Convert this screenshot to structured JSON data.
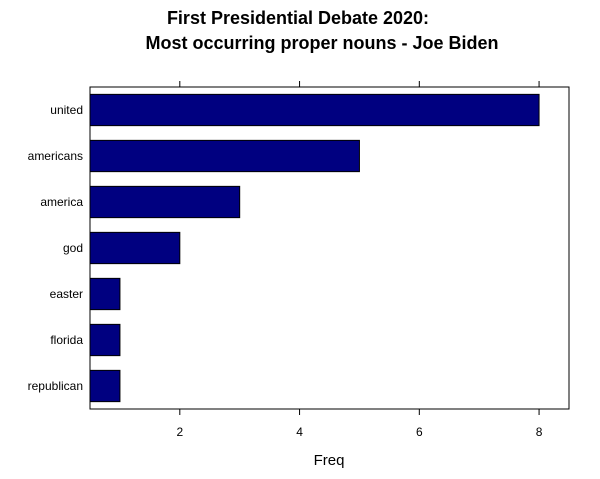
{
  "chart_data": {
    "type": "bar",
    "orientation": "horizontal",
    "title_lines": [
      "First Presidential Debate 2020:",
      "Most occurring proper nouns - Joe Biden"
    ],
    "xlabel": "Freq",
    "ylabel": "",
    "categories": [
      "united",
      "americans",
      "america",
      "god",
      "easter",
      "florida",
      "republican"
    ],
    "values": [
      8,
      5,
      3,
      2,
      1,
      1,
      1
    ],
    "xlim": [
      0.5,
      8.5
    ],
    "xticks": [
      2,
      4,
      6,
      8
    ],
    "grid": false,
    "legend": "none",
    "bar_color": "#000080"
  }
}
